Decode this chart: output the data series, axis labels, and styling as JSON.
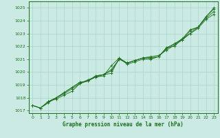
{
  "title": "Graphe pression niveau de la mer (hPa)",
  "bg_color": "#cceae4",
  "grid_color": "#aad4cc",
  "line_color": "#1a6e1a",
  "x_ticks": [
    0,
    1,
    2,
    3,
    4,
    5,
    6,
    7,
    8,
    9,
    10,
    11,
    12,
    13,
    14,
    15,
    16,
    17,
    18,
    19,
    20,
    21,
    22,
    23
  ],
  "y_min": 1016.8,
  "y_max": 1025.5,
  "y_ticks": [
    1017,
    1018,
    1019,
    1020,
    1021,
    1022,
    1023,
    1024,
    1025
  ],
  "series": [
    [
      1017.4,
      1017.2,
      1017.7,
      1017.9,
      1018.2,
      1018.5,
      1019.1,
      1019.4,
      1019.6,
      1019.7,
      1020.5,
      1021.1,
      1020.7,
      1020.9,
      1021.1,
      1021.2,
      1021.3,
      1021.7,
      1022.1,
      1022.5,
      1023.0,
      1023.5,
      1024.2,
      1024.7
    ],
    [
      1017.4,
      1017.2,
      1017.6,
      1018.0,
      1018.3,
      1018.7,
      1019.1,
      1019.3,
      1019.6,
      1019.8,
      1019.9,
      1021.1,
      1020.6,
      1020.8,
      1021.0,
      1021.0,
      1021.2,
      1021.9,
      1022.0,
      1022.6,
      1023.0,
      1023.4,
      1024.1,
      1024.5
    ],
    [
      1017.4,
      1017.2,
      1017.7,
      1018.0,
      1018.4,
      1018.8,
      1019.2,
      1019.3,
      1019.7,
      1019.8,
      1020.1,
      1021.0,
      1020.7,
      1020.9,
      1021.1,
      1021.1,
      1021.2,
      1021.9,
      1022.2,
      1022.6,
      1023.3,
      1023.5,
      1024.3,
      1025.0
    ],
    [
      1017.4,
      1017.2,
      1017.7,
      1018.0,
      1018.4,
      1018.8,
      1019.2,
      1019.3,
      1019.7,
      1019.8,
      1020.2,
      1021.0,
      1020.7,
      1020.9,
      1021.1,
      1021.1,
      1021.2,
      1021.8,
      1022.2,
      1022.5,
      1023.2,
      1023.5,
      1024.3,
      1024.9
    ]
  ]
}
